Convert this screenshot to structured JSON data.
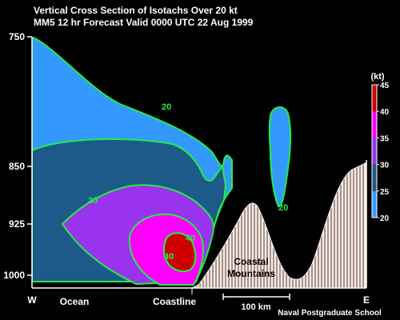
{
  "chart_data": {
    "type": "contour",
    "title": "Vertical Cross Section of Isotachs Over 20 kt",
    "subtitle": "MM5 12 hr Forecast Valid 0000 UTC  22 Aug 1999",
    "y_axis": {
      "ticks": [
        "750",
        "850",
        "925",
        "1000"
      ],
      "values": [
        750,
        850,
        925,
        1000
      ]
    },
    "x_axis": {
      "left": "W",
      "right": "E",
      "labels": [
        "Ocean",
        "Coastline"
      ]
    },
    "scale_bar_label": "100 km",
    "credit": "Naval Postgraduate School",
    "terrain_label": [
      "Coastal",
      "Mountains"
    ],
    "colorbar": {
      "unit": "(kt)",
      "ticks": [
        "45",
        "40",
        "35",
        "30",
        "25",
        "20"
      ],
      "levels": [
        45,
        40,
        35,
        30,
        25,
        20
      ],
      "bands": [
        {
          "range": [
            20,
            25
          ],
          "color": "#3399ff"
        },
        {
          "range": [
            25,
            30
          ],
          "color": "#1d5a8a"
        },
        {
          "range": [
            30,
            35
          ],
          "color": "#9933ee"
        },
        {
          "range": [
            35,
            40
          ],
          "color": "#ff00ff"
        },
        {
          "range": [
            40,
            45
          ],
          "color": "#cc0000"
        }
      ]
    },
    "contour_labels": [
      "20",
      "30",
      "40",
      "40",
      "20"
    ],
    "contour_line_color": "#22ee44"
  }
}
